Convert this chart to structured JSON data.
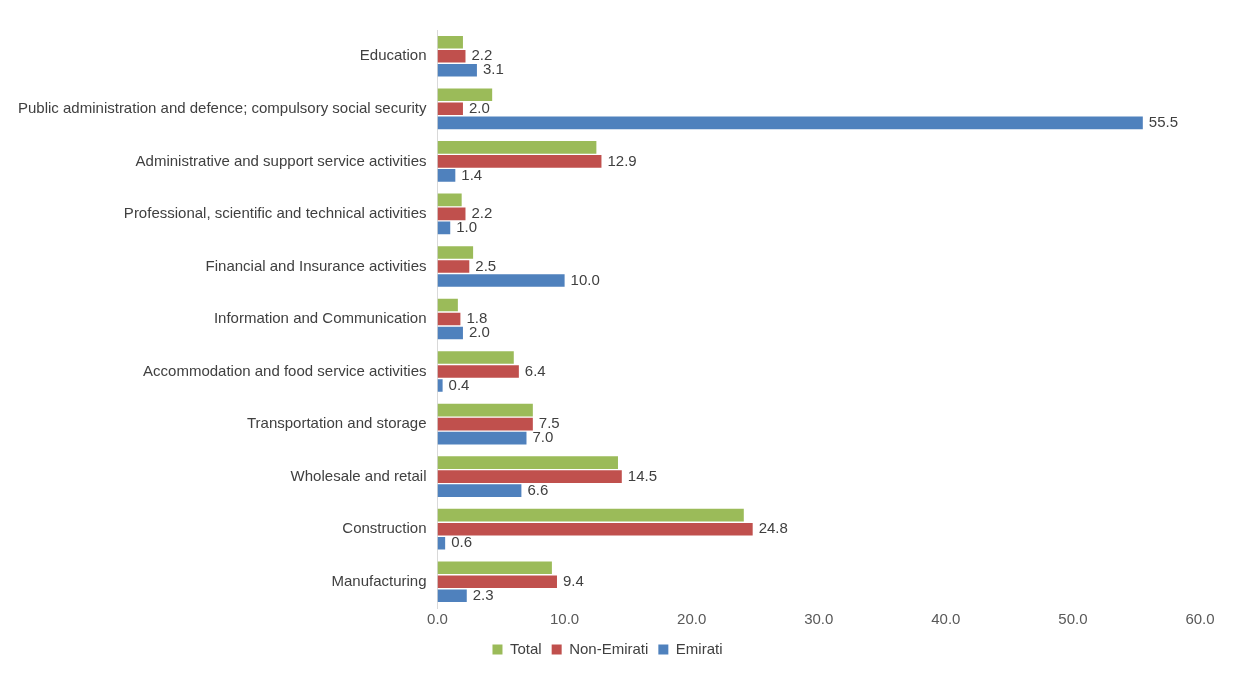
{
  "chart_data": {
    "type": "bar",
    "orientation": "horizontal",
    "categories": [
      "Education",
      "Public administration and defence; compulsory social security",
      "Administrative and support service activities",
      "Professional, scientific and technical activities",
      "Financial and Insurance activities",
      "Information and Communication",
      "Accommodation and food service activities",
      "Transportation and storage",
      "Wholesale and retail",
      "Construction",
      "Manufacturing"
    ],
    "series": [
      {
        "name": "Total",
        "color": "#9bbb59",
        "values": [
          2.0,
          4.3,
          12.5,
          1.9,
          2.8,
          1.6,
          6.0,
          7.5,
          14.2,
          24.1,
          9.0
        ]
      },
      {
        "name": "Non-Emirati",
        "color": "#c0504d",
        "values": [
          2.2,
          2.0,
          12.9,
          2.2,
          2.5,
          1.8,
          6.4,
          7.5,
          14.5,
          24.8,
          9.4
        ],
        "value_labels": [
          "2.2",
          "2.0",
          "12.9",
          "2.2",
          "2.5",
          "1.8",
          "6.4",
          "7.5",
          "14.5",
          "24.8",
          "9.4"
        ]
      },
      {
        "name": "Emirati",
        "color": "#4f81bd",
        "values": [
          3.1,
          55.5,
          1.4,
          1.0,
          10.0,
          2.0,
          0.4,
          7.0,
          6.6,
          0.6,
          2.3
        ],
        "value_labels": [
          "3.1",
          "55.5",
          "1.4",
          "1.0",
          "10.0",
          "2.0",
          "0.4",
          "7.0",
          "6.6",
          "0.6",
          "2.3"
        ]
      }
    ],
    "xlim": [
      0,
      60
    ],
    "xticks": [
      {
        "value": 0,
        "label": "0.0"
      },
      {
        "value": 10,
        "label": "10.0"
      },
      {
        "value": 20,
        "label": "20.0"
      },
      {
        "value": 30,
        "label": "30.0"
      },
      {
        "value": 40,
        "label": "40.0"
      },
      {
        "value": 50,
        "label": "50.0"
      },
      {
        "value": 60,
        "label": "60.0"
      }
    ],
    "grid": false,
    "legend": "bottom"
  }
}
